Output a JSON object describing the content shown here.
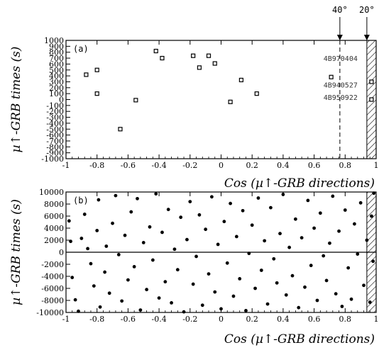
{
  "chart_data": [
    {
      "type": "scatter",
      "panel_label": "(a)",
      "marker": "open-square",
      "xlim": [
        -1,
        1
      ],
      "ylim": [
        -1000,
        1000
      ],
      "xticks": [
        "-1",
        "-0.8",
        "-0.6",
        "-0.4",
        "-0.2",
        "0",
        "0.2",
        "0.4",
        "0.6",
        "0.8",
        "1"
      ],
      "yticks": [
        "1000",
        "900",
        "800",
        "700",
        "600",
        "500",
        "400",
        "300",
        "200",
        "100",
        "0",
        "-100",
        "-200",
        "-300",
        "-400",
        "-500",
        "-600",
        "-700",
        "-800",
        "-900",
        "-1000"
      ],
      "xlabel": "Cos (µ↑-GRB directions)",
      "ylabel": "µ↑-GRB times (s)",
      "points": [
        {
          "x": -0.87,
          "y": 420
        },
        {
          "x": -0.8,
          "y": 500
        },
        {
          "x": -0.8,
          "y": 100
        },
        {
          "x": -0.65,
          "y": -500
        },
        {
          "x": -0.55,
          "y": -10
        },
        {
          "x": -0.42,
          "y": 820
        },
        {
          "x": -0.38,
          "y": 700
        },
        {
          "x": -0.18,
          "y": 740
        },
        {
          "x": -0.14,
          "y": 540
        },
        {
          "x": -0.08,
          "y": 740
        },
        {
          "x": -0.04,
          "y": 610
        },
        {
          "x": 0.06,
          "y": -40
        },
        {
          "x": 0.13,
          "y": 330
        },
        {
          "x": 0.23,
          "y": 100
        },
        {
          "x": 0.71,
          "y": 380
        },
        {
          "x": 0.97,
          "y": 300
        },
        {
          "x": 0.97,
          "y": 0
        }
      ],
      "dashed_line_x": 0.766,
      "hatched_region_x": [
        0.94,
        1.0
      ],
      "angle_markers": [
        {
          "label": "40°",
          "x": 0.766
        },
        {
          "label": "20°",
          "x": 0.94
        }
      ],
      "annotations": [
        {
          "text": "4B970404",
          "x": 0.66,
          "y": 700
        },
        {
          "text": "4B940527",
          "x": 0.66,
          "y": 250
        },
        {
          "text": "4B950922",
          "x": 0.66,
          "y": 40
        }
      ]
    },
    {
      "type": "scatter",
      "panel_label": "(b)",
      "marker": "filled-circle",
      "xlim": [
        -1,
        1
      ],
      "ylim": [
        -10000,
        10000
      ],
      "xticks": [
        "-1",
        "-0.8",
        "-0.6",
        "-0.4",
        "-0.2",
        "0",
        "0.2",
        "0.4",
        "0.6",
        "0.8",
        "1"
      ],
      "yticks": [
        "10000",
        "8000",
        "6000",
        "4000",
        "2000",
        "0",
        "-2000",
        "-4000",
        "-6000",
        "-8000",
        "-10000"
      ],
      "xlabel": "Cos (µ↑-GRB directions)",
      "ylabel": "µ↑-GRB times (s)",
      "zero_line": true,
      "hatched_region_x": [
        0.94,
        1.0
      ],
      "points": [
        [
          -0.98,
          5200
        ],
        [
          -0.97,
          1800
        ],
        [
          -0.96,
          -4200
        ],
        [
          -0.94,
          -7900
        ],
        [
          -0.92,
          -9800
        ],
        [
          -0.9,
          2300
        ],
        [
          -0.88,
          6300
        ],
        [
          -0.86,
          600
        ],
        [
          -0.84,
          -1900
        ],
        [
          -0.82,
          -5600
        ],
        [
          -0.8,
          3600
        ],
        [
          -0.79,
          8700
        ],
        [
          -0.78,
          -9100
        ],
        [
          -0.75,
          -3300
        ],
        [
          -0.74,
          1000
        ],
        [
          -0.72,
          -6800
        ],
        [
          -0.7,
          4800
        ],
        [
          -0.68,
          9400
        ],
        [
          -0.66,
          -400
        ],
        [
          -0.64,
          -8100
        ],
        [
          -0.62,
          2800
        ],
        [
          -0.6,
          -4600
        ],
        [
          -0.58,
          6700
        ],
        [
          -0.56,
          -2400
        ],
        [
          -0.54,
          8900
        ],
        [
          -0.52,
          -9600
        ],
        [
          -0.5,
          1600
        ],
        [
          -0.48,
          -6200
        ],
        [
          -0.46,
          4200
        ],
        [
          -0.44,
          -1300
        ],
        [
          -0.42,
          9700
        ],
        [
          -0.4,
          -7600
        ],
        [
          -0.38,
          3300
        ],
        [
          -0.36,
          -4900
        ],
        [
          -0.34,
          7100
        ],
        [
          -0.32,
          -8400
        ],
        [
          -0.3,
          500
        ],
        [
          -0.28,
          -2900
        ],
        [
          -0.26,
          5800
        ],
        [
          -0.24,
          -9900
        ],
        [
          -0.22,
          2100
        ],
        [
          -0.2,
          8400
        ],
        [
          -0.18,
          -5300
        ],
        [
          -0.16,
          -700
        ],
        [
          -0.14,
          6200
        ],
        [
          -0.12,
          -8800
        ],
        [
          -0.1,
          3800
        ],
        [
          -0.08,
          -3600
        ],
        [
          -0.06,
          9200
        ],
        [
          -0.04,
          -6600
        ],
        [
          -0.02,
          1300
        ],
        [
          0,
          -9400
        ],
        [
          0.02,
          5100
        ],
        [
          0.04,
          -1800
        ],
        [
          0.06,
          8100
        ],
        [
          0.08,
          -7300
        ],
        [
          0.1,
          2600
        ],
        [
          0.12,
          -4400
        ],
        [
          0.14,
          6900
        ],
        [
          0.16,
          -9700
        ],
        [
          0.18,
          -200
        ],
        [
          0.2,
          4500
        ],
        [
          0.22,
          -6000
        ],
        [
          0.24,
          9000
        ],
        [
          0.26,
          -3000
        ],
        [
          0.28,
          1900
        ],
        [
          0.3,
          -8600
        ],
        [
          0.32,
          7400
        ],
        [
          0.34,
          -1100
        ],
        [
          0.36,
          -5100
        ],
        [
          0.38,
          3100
        ],
        [
          0.4,
          9600
        ],
        [
          0.42,
          -7100
        ],
        [
          0.44,
          800
        ],
        [
          0.46,
          -3900
        ],
        [
          0.48,
          5500
        ],
        [
          0.5,
          -9200
        ],
        [
          0.52,
          2400
        ],
        [
          0.54,
          -5800
        ],
        [
          0.56,
          8600
        ],
        [
          0.58,
          -2200
        ],
        [
          0.6,
          4000
        ],
        [
          0.62,
          -8000
        ],
        [
          0.64,
          6500
        ],
        [
          0.66,
          -600
        ],
        [
          0.68,
          -4700
        ],
        [
          0.7,
          1500
        ],
        [
          0.72,
          9300
        ],
        [
          0.74,
          -6900
        ],
        [
          0.76,
          3500
        ],
        [
          0.78,
          -9000
        ],
        [
          0.8,
          7000
        ],
        [
          0.82,
          -2600
        ],
        [
          0.84,
          -7800
        ],
        [
          0.86,
          4700
        ],
        [
          0.88,
          -300
        ],
        [
          0.9,
          8200
        ],
        [
          0.92,
          -5500
        ],
        [
          0.94,
          2000
        ],
        [
          0.96,
          -8300
        ],
        [
          0.97,
          6000
        ],
        [
          0.98,
          -1500
        ],
        [
          0.985,
          9800
        ]
      ]
    }
  ]
}
